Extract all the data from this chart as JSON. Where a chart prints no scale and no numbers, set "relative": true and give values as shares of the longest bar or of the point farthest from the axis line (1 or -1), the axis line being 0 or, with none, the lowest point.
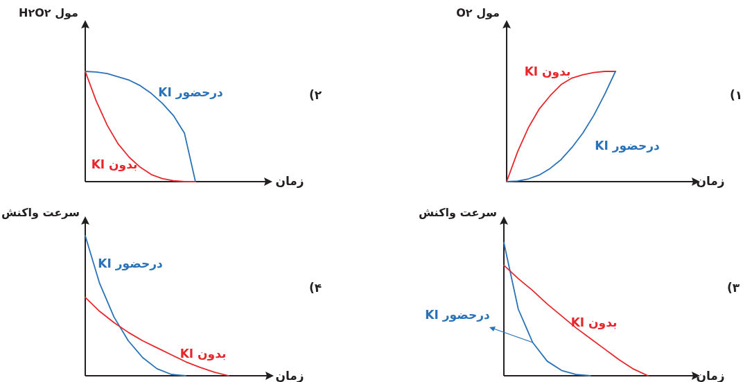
{
  "chart_data": [
    {
      "type": "line",
      "relative": true,
      "ylabel": "مول O۲",
      "xlabel": "زمان",
      "annotations": [
        "۱)"
      ],
      "categories": [
        null,
        null,
        null,
        null,
        null,
        null,
        null,
        null,
        null,
        null,
        null,
        null,
        null,
        null,
        null,
        null,
        null
      ],
      "series": [
        {
          "name": "بدون KI",
          "color": "#e8262b",
          "values": [
            0,
            0.27,
            0.49,
            0.66,
            0.78,
            0.88,
            0.94,
            0.97,
            0.99,
            1,
            1,
            null,
            null,
            null,
            null,
            null,
            null
          ]
        },
        {
          "name": "درحضور KI",
          "color": "#2a72b8",
          "values": [
            0,
            0.005,
            0.025,
            0.06,
            0.12,
            0.2,
            0.31,
            0.44,
            0.6,
            0.79,
            1,
            null,
            null,
            null,
            null,
            null,
            null
          ]
        }
      ]
    },
    {
      "type": "line",
      "relative": true,
      "ylabel": "مول H۲O۲",
      "xlabel": "زمان",
      "annotations": [
        "۲)"
      ],
      "categories": [
        null,
        null,
        null,
        null,
        null,
        null,
        null,
        null,
        null,
        null,
        null,
        null,
        null,
        null,
        null,
        null
      ],
      "series": [
        {
          "name": "درحضور KI",
          "color": "#2a72b8",
          "values": [
            1,
            0.995,
            0.98,
            0.95,
            0.92,
            0.87,
            0.8,
            0.71,
            0.6,
            0.44,
            0,
            null,
            null,
            null,
            null,
            null
          ]
        },
        {
          "name": "بدون KI",
          "color": "#e8262b",
          "values": [
            1,
            0.73,
            0.51,
            0.34,
            0.22,
            0.13,
            0.064,
            0.027,
            0.008,
            0.001,
            0,
            null,
            null,
            null,
            null,
            null
          ]
        }
      ]
    },
    {
      "type": "line",
      "relative": true,
      "ylabel": "سرعت واکنش",
      "xlabel": "زمان",
      "annotations": [
        "۳)"
      ],
      "categories": [
        null,
        null,
        null,
        null,
        null,
        null,
        null,
        null,
        null,
        null,
        null,
        null,
        null
      ],
      "series": [
        {
          "name": "درحضور KI",
          "color": "#2a72b8",
          "values": [
            1,
            0.5,
            0.25,
            0.11,
            0.04,
            0.01,
            0,
            null,
            null,
            null,
            null,
            null,
            null
          ]
        },
        {
          "name": "بدون KI",
          "color": "#e8262b",
          "values": [
            0.83,
            0.73,
            0.64,
            0.54,
            0.45,
            0.36,
            0.28,
            0.2,
            0.12,
            0.05,
            0,
            null,
            null
          ]
        }
      ]
    },
    {
      "type": "line",
      "relative": true,
      "ylabel": "سرعت واکنش",
      "xlabel": "زمان",
      "annotations": [
        "۴)"
      ],
      "categories": [
        null,
        null,
        null,
        null,
        null,
        null,
        null,
        null,
        null,
        null,
        null,
        null
      ],
      "series": [
        {
          "name": "درحضور KI",
          "color": "#2a72b8",
          "values": [
            1,
            0.66,
            0.42,
            0.25,
            0.13,
            0.05,
            0.01,
            0,
            null,
            null,
            null,
            null
          ]
        },
        {
          "name": "بدون KI",
          "color": "#e8262b",
          "values": [
            0.56,
            0.46,
            0.38,
            0.31,
            0.25,
            0.2,
            0.15,
            0.1,
            0.06,
            0.025,
            0,
            null
          ]
        }
      ]
    }
  ]
}
